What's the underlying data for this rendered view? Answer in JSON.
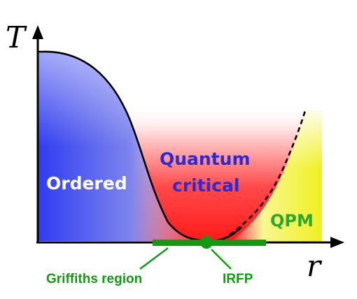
{
  "axes": {
    "y_label": "T",
    "x_label": "r"
  },
  "regions": {
    "ordered": "Ordered",
    "quantum_line1": "Quantum",
    "quantum_line2": "critical",
    "qpm": "QPM"
  },
  "annotations": {
    "griffiths": "Griffiths region",
    "irfp": "IRFP"
  },
  "colors": {
    "ordered_fill": "#2f3cf0",
    "critical_fill": "#ff2020",
    "qpm_fill": "#f0f020",
    "griffiths_bar": "#139a13",
    "quantum_text": "#2a2ad8",
    "ordered_text": "#ffffff",
    "qpm_text": "#2fa62f",
    "annotation_text": "#139a13",
    "axis": "#000000"
  }
}
